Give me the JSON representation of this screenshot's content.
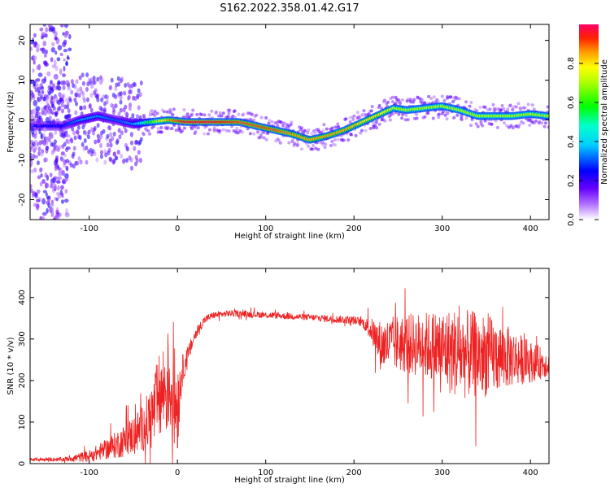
{
  "title": "S162.2022.358.01.42.G17",
  "chart_data": [
    {
      "type": "heatmap",
      "name": "spectrogram",
      "xlabel": "Height of straight line (km)",
      "ylabel": "Frequency (Hz)",
      "xlim": [
        -167,
        421
      ],
      "ylim": [
        -25,
        24
      ],
      "x_ticks": [
        -100,
        0,
        100,
        200,
        300,
        400
      ],
      "y_ticks": [
        -20,
        -10,
        0,
        10,
        20
      ],
      "colorbar": {
        "label": "Normalized spectral amplitude",
        "range": [
          0,
          1
        ],
        "ticks": [
          0.0,
          0.2,
          0.4,
          0.6,
          0.8
        ],
        "colormap": [
          "#ffffff",
          "#7f00ff",
          "#0000ff",
          "#00ffff",
          "#00ff00",
          "#ffff00",
          "#ff7f00",
          "#ff0000",
          "#ff0066"
        ]
      },
      "ridge": {
        "x": [
          -130,
          -110,
          -90,
          -70,
          -50,
          -30,
          -10,
          10,
          40,
          70,
          90,
          110,
          130,
          150,
          170,
          190,
          210,
          230,
          245,
          260,
          280,
          300,
          320,
          340,
          360,
          380,
          400,
          420
        ],
        "freq": [
          -1.5,
          0,
          1,
          0,
          -1,
          -0.5,
          0,
          -0.5,
          -0.5,
          -0.5,
          -1.5,
          -2.5,
          -3.5,
          -5,
          -4,
          -2.5,
          -0.5,
          1.5,
          3,
          2.5,
          3,
          3.5,
          2.5,
          1,
          1,
          1,
          1.5,
          1
        ],
        "peak_amplitude": [
          0.25,
          0.35,
          0.35,
          0.3,
          0.35,
          0.6,
          0.85,
          0.95,
          0.95,
          0.9,
          0.9,
          0.9,
          0.85,
          0.85,
          0.85,
          0.85,
          0.8,
          0.8,
          0.7,
          0.7,
          0.7,
          0.7,
          0.7,
          0.7,
          0.7,
          0.7,
          0.7,
          0.7
        ]
      }
    },
    {
      "type": "line",
      "name": "snr",
      "xlabel": "Height of straight line (km)",
      "ylabel": "SNR (10 * v/v)",
      "xlim": [
        -167,
        421
      ],
      "ylim": [
        0,
        470
      ],
      "x_ticks": [
        -100,
        0,
        100,
        200,
        300,
        400
      ],
      "y_ticks": [
        0,
        100,
        200,
        300,
        400
      ],
      "color": "#ee2222",
      "envelope": {
        "x": [
          -167,
          -130,
          -100,
          -80,
          -60,
          -40,
          -30,
          -20,
          -10,
          0,
          5,
          10,
          20,
          30,
          40,
          60,
          100,
          150,
          200,
          210,
          220,
          230,
          250,
          280,
          300,
          320,
          350,
          380,
          400,
          421
        ],
        "mean": [
          10,
          10,
          18,
          35,
          55,
          85,
          110,
          160,
          200,
          140,
          220,
          250,
          310,
          345,
          357,
          362,
          358,
          352,
          345,
          340,
          320,
          285,
          290,
          285,
          275,
          265,
          260,
          255,
          245,
          240
        ],
        "spread": [
          4,
          5,
          15,
          25,
          40,
          55,
          80,
          110,
          130,
          120,
          40,
          25,
          15,
          10,
          8,
          8,
          8,
          8,
          10,
          12,
          30,
          60,
          70,
          80,
          100,
          110,
          100,
          70,
          50,
          30
        ]
      }
    }
  ]
}
